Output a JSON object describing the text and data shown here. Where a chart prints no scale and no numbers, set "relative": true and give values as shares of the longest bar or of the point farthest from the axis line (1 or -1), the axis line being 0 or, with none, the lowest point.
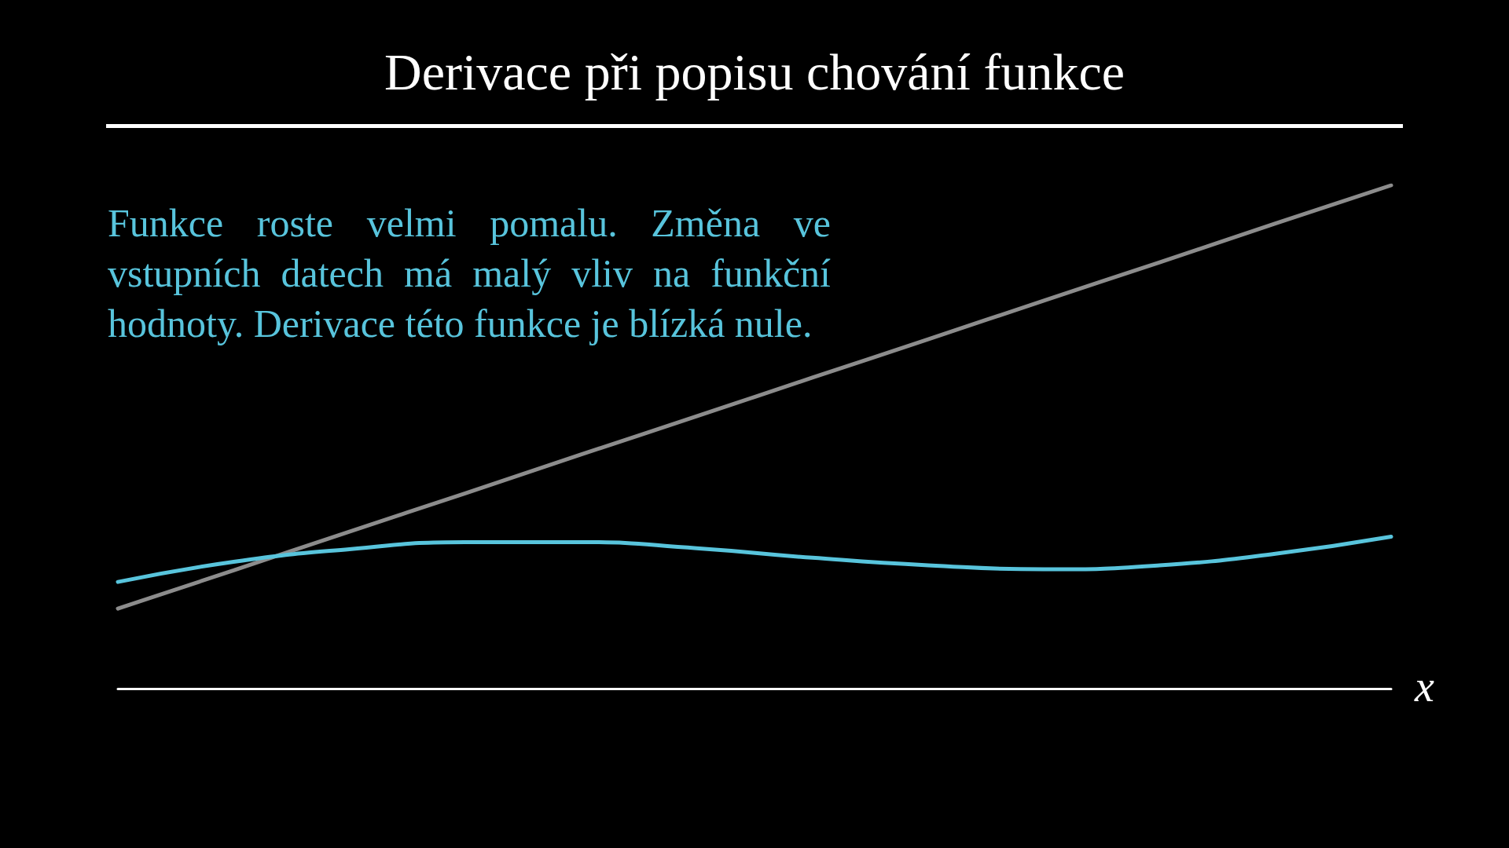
{
  "chart_data": {
    "type": "line",
    "title": "Derivace při popisu chování funkce",
    "xlabel": "x",
    "relative": true,
    "annotations": [
      "Funkce roste velmi pomalu. Změna ve vstupních datech má malý vliv na funkční hodnoty. Derivace této funkce je blízká nule."
    ],
    "categories": [
      null,
      null,
      null,
      null,
      null,
      null,
      null,
      null,
      null,
      null,
      null,
      null
    ],
    "series": [
      {
        "color": "#8c8c8c",
        "values": [
          0.159,
          0.235,
          0.312,
          0.388,
          0.465,
          0.541,
          0.618,
          0.694,
          0.771,
          0.847,
          0.924,
          1.0
        ]
      },
      {
        "color": "#58c4dc",
        "values": [
          0.212,
          0.252,
          0.277,
          0.291,
          0.291,
          0.279,
          0.26,
          0.245,
          0.237,
          0.245,
          0.268,
          0.302
        ]
      }
    ]
  }
}
